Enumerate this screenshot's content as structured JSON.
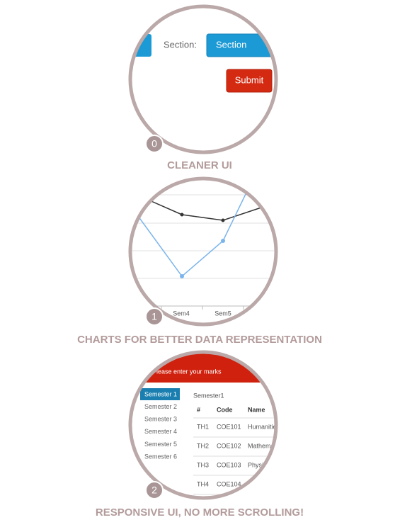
{
  "features": [
    {
      "badge": "0",
      "title": "CLEANER UI",
      "screen": {
        "field_label": "Section:",
        "select": "Section",
        "button": "Submit"
      }
    },
    {
      "badge": "1",
      "title": "CHARTS FOR BETTER DATA REPRESENTATION",
      "screen": {
        "categories": [
          "Sem4",
          "Sem5"
        ]
      }
    },
    {
      "badge": "2",
      "title": "RESPONSIVE UI, NO MORE SCROLLING!",
      "screen": {
        "header": "Please enter your marks",
        "menu": [
          "Semester 1",
          "Semester 2",
          "Semester 3",
          "Semester 4",
          "Semester 5",
          "Semester 6"
        ],
        "panel_title": "Semester1",
        "columns": [
          "#",
          "Code",
          "Name"
        ],
        "rows": [
          [
            "TH1",
            "COE101",
            "Humanities"
          ],
          [
            "TH2",
            "COE102",
            "Mathematics"
          ],
          [
            "TH3",
            "COE103",
            "Physics"
          ],
          [
            "TH4",
            "COE104",
            ""
          ]
        ]
      }
    }
  ]
}
